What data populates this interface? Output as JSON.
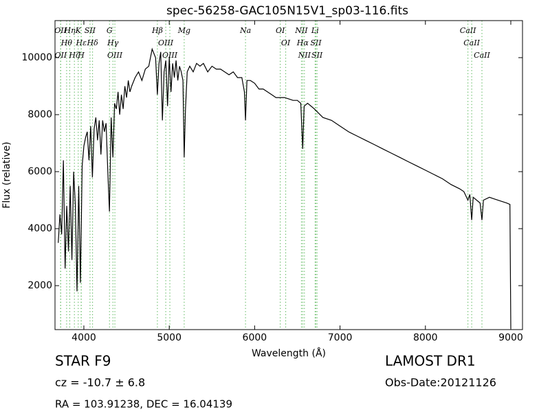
{
  "chart_data": {
    "type": "line",
    "title": "spec-56258-GAC105N15V1_sp03-116.fits",
    "x_label": "Wavelength (Å)",
    "y_label": "Flux (relative)",
    "color": "#000000",
    "line_color": "#5cb85c",
    "xlim": [
      3662,
      9137
    ],
    "ylim": [
      458,
      11300
    ],
    "xticks": [
      4000,
      5000,
      6000,
      7000,
      8000,
      9000
    ],
    "yticks": [
      2000,
      4000,
      6000,
      8000,
      10000
    ],
    "x": [
      3700,
      3720,
      3740,
      3760,
      3780,
      3800,
      3820,
      3840,
      3860,
      3880,
      3900,
      3920,
      3940,
      3960,
      3980,
      4000,
      4020,
      4040,
      4060,
      4080,
      4100,
      4120,
      4140,
      4160,
      4180,
      4200,
      4220,
      4240,
      4260,
      4280,
      4300,
      4320,
      4340,
      4360,
      4380,
      4400,
      4420,
      4440,
      4460,
      4480,
      4500,
      4520,
      4540,
      4560,
      4600,
      4640,
      4680,
      4720,
      4760,
      4800,
      4840,
      4861,
      4880,
      4900,
      4920,
      4940,
      4960,
      4980,
      5000,
      5020,
      5040,
      5060,
      5080,
      5100,
      5120,
      5140,
      5160,
      5175,
      5190,
      5210,
      5240,
      5280,
      5320,
      5360,
      5400,
      5450,
      5500,
      5550,
      5600,
      5650,
      5700,
      5750,
      5800,
      5850,
      5880,
      5893,
      5910,
      5950,
      6000,
      6050,
      6100,
      6150,
      6200,
      6250,
      6300,
      6350,
      6400,
      6450,
      6500,
      6540,
      6563,
      6580,
      6620,
      6660,
      6700,
      6750,
      6800,
      6900,
      7000,
      7100,
      7200,
      7300,
      7400,
      7500,
      7600,
      7700,
      7800,
      7900,
      8000,
      8100,
      8200,
      8300,
      8400,
      8450,
      8498,
      8520,
      8542,
      8560,
      8600,
      8640,
      8662,
      8680,
      8750,
      8800,
      8900,
      8950,
      8990,
      9000
    ],
    "values": [
      3500,
      4500,
      3800,
      6400,
      2600,
      4800,
      3200,
      5500,
      2900,
      6000,
      4800,
      1800,
      5500,
      2100,
      6200,
      6900,
      7200,
      7400,
      6400,
      7600,
      5800,
      7500,
      7900,
      7100,
      7800,
      6600,
      7800,
      7400,
      7700,
      6000,
      4600,
      7900,
      6500,
      8400,
      8200,
      8800,
      8000,
      8700,
      8200,
      9000,
      8600,
      9200,
      8800,
      9000,
      9300,
      9500,
      9200,
      9600,
      9700,
      10300,
      10000,
      8700,
      9800,
      10200,
      7800,
      9500,
      9900,
      8300,
      10000,
      8800,
      9800,
      9300,
      9900,
      9200,
      9700,
      9500,
      9200,
      6500,
      8200,
      9500,
      9700,
      9500,
      9800,
      9700,
      9800,
      9500,
      9700,
      9600,
      9600,
      9500,
      9400,
      9500,
      9300,
      9300,
      8800,
      7800,
      9200,
      9200,
      9100,
      8900,
      8900,
      8800,
      8700,
      8600,
      8600,
      8600,
      8550,
      8500,
      8500,
      8400,
      6800,
      8300,
      8400,
      8300,
      8200,
      8050,
      7900,
      7800,
      7600,
      7400,
      7250,
      7100,
      6950,
      6800,
      6650,
      6500,
      6350,
      6200,
      6050,
      5900,
      5750,
      5550,
      5400,
      5300,
      5000,
      5200,
      4300,
      5100,
      5000,
      4900,
      4300,
      5000,
      5100,
      5050,
      4950,
      4900,
      4850,
      500
    ],
    "spectral_lines": [
      {
        "label": "OII",
        "x": 3727
      },
      {
        "label": "Hθ",
        "x": 3798
      },
      {
        "label": "OII",
        "x": 3729
      },
      {
        "label": "Hη",
        "x": 3835
      },
      {
        "label": "Hζ",
        "x": 3889
      },
      {
        "label": "K",
        "x": 3934
      },
      {
        "label": "Hε",
        "x": 3970
      },
      {
        "label": "H",
        "x": 3968
      },
      {
        "label": "SII",
        "x": 4072
      },
      {
        "label": "Hδ",
        "x": 4102
      },
      {
        "label": "G",
        "x": 4300
      },
      {
        "label": "Hγ",
        "x": 4340
      },
      {
        "label": "OIII",
        "x": 4363
      },
      {
        "label": "Hβ",
        "x": 4861
      },
      {
        "label": "OIII",
        "x": 4959
      },
      {
        "label": "OIII",
        "x": 5007
      },
      {
        "label": "Mg",
        "x": 5175
      },
      {
        "label": "Na",
        "x": 5893
      },
      {
        "label": "OI",
        "x": 6300
      },
      {
        "label": "OI",
        "x": 6364
      },
      {
        "label": "NII",
        "x": 6548
      },
      {
        "label": "Hα",
        "x": 6563
      },
      {
        "label": "NII",
        "x": 6583
      },
      {
        "label": "Li",
        "x": 6708
      },
      {
        "label": "SII",
        "x": 6717
      },
      {
        "label": "SII",
        "x": 6731
      },
      {
        "label": "CaII",
        "x": 8498
      },
      {
        "label": "CaII",
        "x": 8542
      },
      {
        "label": "CaII",
        "x": 8662
      }
    ]
  },
  "footer": {
    "object": "STAR   F9",
    "redshift": "cz = -10.7  ± 6.8",
    "coordinates": "RA = 103.91238, DEC = 16.04139",
    "survey": "LAMOST DR1",
    "date": "Obs-Date:20121126"
  }
}
